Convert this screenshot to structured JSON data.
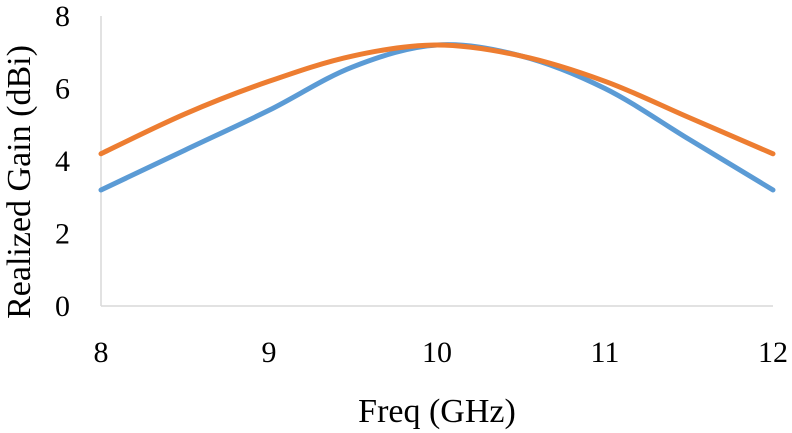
{
  "chart_data": {
    "type": "line",
    "title": "",
    "xlabel": "Freq (GHz)",
    "ylabel": "Realized Gain (dBi)",
    "xlim": [
      8,
      12
    ],
    "ylim": [
      0,
      8
    ],
    "x_ticks": [
      "8",
      "9",
      "10",
      "11",
      "12"
    ],
    "y_ticks": [
      "0",
      "2",
      "4",
      "6",
      "8"
    ],
    "grid": false,
    "legend": "none",
    "series": [
      {
        "color": "#5b9bd5",
        "x": [
          8,
          8.5,
          9,
          9.5,
          10,
          10.5,
          11,
          11.5,
          12
        ],
        "y": [
          3.2,
          4.3,
          5.4,
          6.6,
          7.2,
          6.9,
          6.0,
          4.6,
          3.2
        ]
      },
      {
        "color": "#ed7d31",
        "x": [
          8,
          8.5,
          9,
          9.5,
          10,
          10.5,
          11,
          11.5,
          12
        ],
        "y": [
          4.2,
          5.3,
          6.2,
          6.9,
          7.2,
          6.9,
          6.2,
          5.2,
          4.2
        ]
      }
    ]
  }
}
